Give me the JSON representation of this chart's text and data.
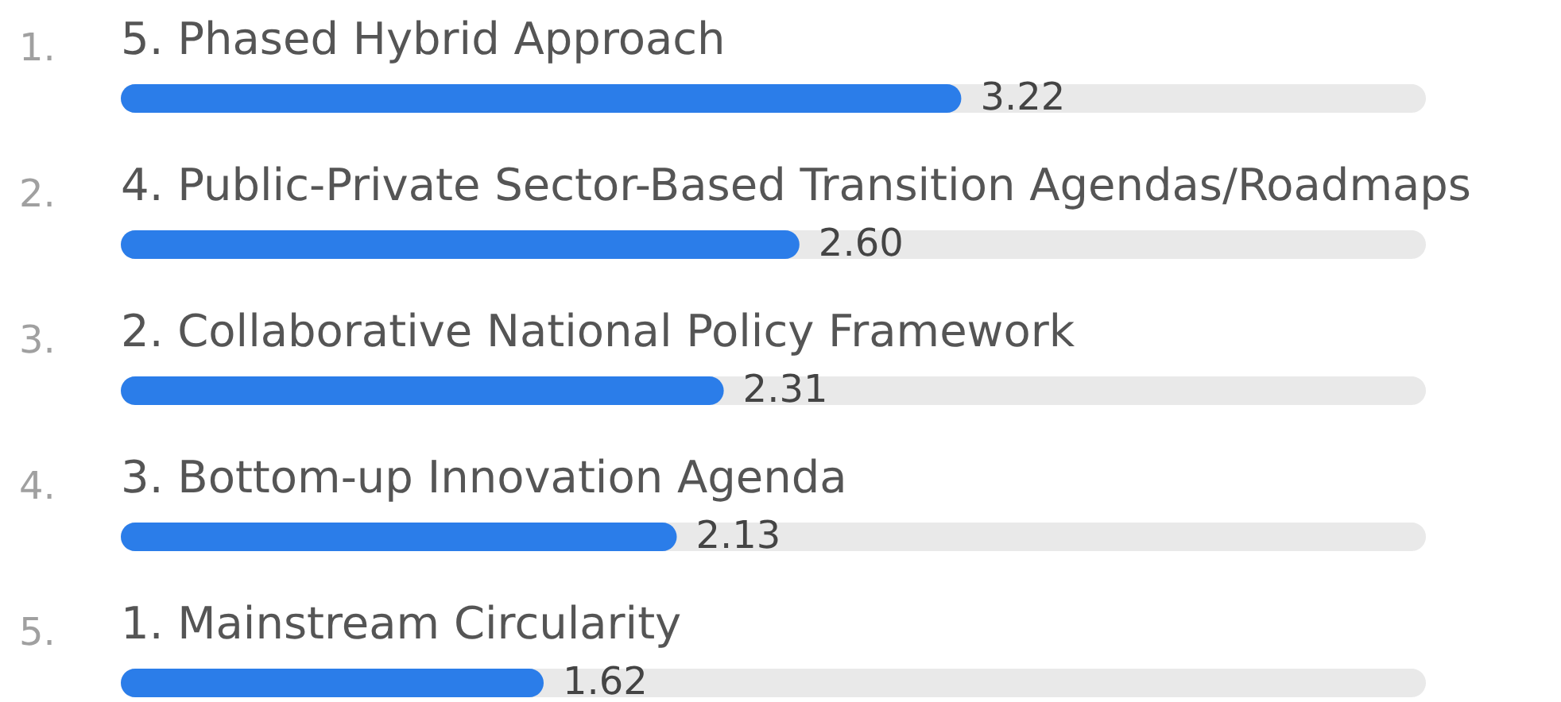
{
  "chart_data": {
    "type": "bar",
    "orientation": "horizontal",
    "categories": [
      "5. Phased Hybrid Approach",
      "4. Public-Private Sector-Based Transition Agendas/Roadmaps",
      "2. Collaborative National Policy Framework",
      "3. Bottom-up Innovation Agenda",
      "1. Mainstream Circularity"
    ],
    "values": [
      3.22,
      2.6,
      2.31,
      2.13,
      1.62
    ],
    "color": "#2b7de9",
    "xlim": [
      0,
      5
    ],
    "value_labels": [
      "3.22",
      "2.60",
      "2.31",
      "2.13",
      "1.62"
    ],
    "tick_labels": "y",
    "annotations": [
      "1.",
      "2.",
      "3.",
      "4.",
      "5."
    ]
  }
}
